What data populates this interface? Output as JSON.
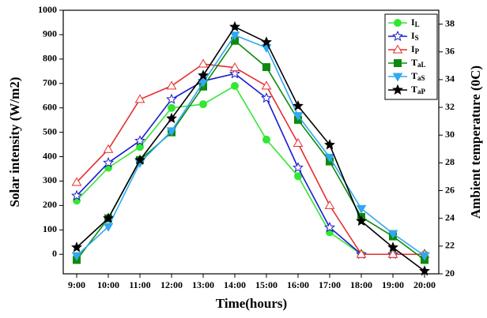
{
  "chart_data": {
    "type": "line",
    "x_label": "Time(hours)",
    "y_label": "Solar intensity (W/m2)",
    "y2_label": "Ambient temperature (0C)",
    "categories": [
      "9:00",
      "10:00",
      "11:00",
      "12:00",
      "13:00",
      "14:00",
      "15:00",
      "16:00",
      "17:00",
      "18:00",
      "19:00",
      "20:00"
    ],
    "ylim": [
      -80,
      1000
    ],
    "yticks": [
      0,
      100,
      200,
      300,
      400,
      500,
      600,
      700,
      800,
      900,
      1000
    ],
    "y2lim": [
      20,
      39
    ],
    "y2ticks": [
      20,
      22,
      24,
      26,
      28,
      30,
      32,
      34,
      36,
      38
    ],
    "legend": "upper right",
    "series": [
      {
        "name": "IL",
        "color": "#33e633",
        "marker": "circle",
        "values": [
          220,
          355,
          440,
          600,
          615,
          690,
          470,
          320,
          90,
          0,
          0,
          0
        ]
      },
      {
        "name": "IS",
        "color": "#1a1acc",
        "marker": "star-open",
        "values": [
          240,
          375,
          465,
          635,
          710,
          740,
          640,
          355,
          110,
          0,
          0,
          0
        ]
      },
      {
        "name": "IP",
        "color": "#e62e2e",
        "marker": "triangle-open",
        "values": [
          295,
          430,
          635,
          690,
          780,
          765,
          690,
          455,
          200,
          0,
          0,
          0
        ]
      },
      {
        "name": "TaL",
        "color": "#0d8a0d",
        "marker": "square",
        "axis": "y2",
        "values": [
          21.0,
          24.0,
          28.2,
          30.2,
          33.5,
          36.8,
          34.9,
          31.1,
          28.1,
          24.1,
          22.7,
          21.0
        ]
      },
      {
        "name": "TaS",
        "color": "#33a8f0",
        "marker": "triangle-down",
        "axis": "y2",
        "values": [
          21.3,
          23.4,
          28.0,
          30.3,
          33.8,
          37.2,
          36.3,
          31.4,
          28.4,
          24.7,
          22.9,
          21.3
        ]
      },
      {
        "name": "TaP",
        "color": "#000000",
        "marker": "star",
        "axis": "y2",
        "values": [
          21.9,
          24.0,
          28.2,
          31.2,
          34.3,
          37.8,
          36.7,
          32.1,
          29.3,
          23.8,
          21.9,
          20.2
        ]
      }
    ]
  }
}
